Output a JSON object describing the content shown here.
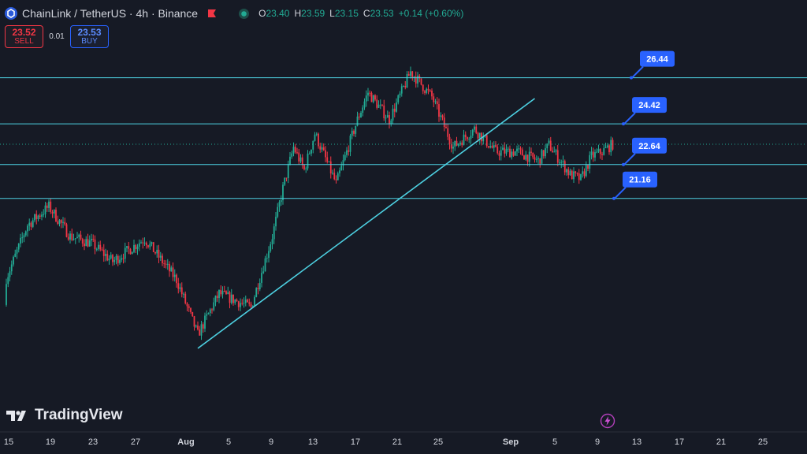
{
  "header": {
    "title": "ChainLink / TetherUS · 4h · Binance",
    "ohlc": [
      {
        "label": "O",
        "value": "23.40"
      },
      {
        "label": "H",
        "value": "23.59"
      },
      {
        "label": "L",
        "value": "23.15"
      },
      {
        "label": "C",
        "value": "23.53"
      }
    ],
    "change": "+0.14 (+0.60%)"
  },
  "trade": {
    "sell_price": "23.52",
    "sell_label": "SELL",
    "spread": "0.01",
    "buy_price": "23.53",
    "buy_label": "BUY"
  },
  "brand": {
    "name": "TradingView"
  },
  "colors": {
    "up": "#22ab94",
    "down": "#f23645",
    "line": "#4dd0e1",
    "label_bg": "#2962ff",
    "background": "#161a25"
  },
  "icons": {
    "symbol": "chainlink-logo-icon",
    "flag": "flag-icon",
    "status": "market-status-icon",
    "bolt": "lightning-icon"
  },
  "chart_data": {
    "type": "candlestick",
    "x_tick_labels": [
      "15",
      "19",
      "23",
      "27",
      "Aug",
      "5",
      "9",
      "13",
      "17",
      "21",
      "25",
      "Sep",
      "5",
      "9",
      "13",
      "17",
      "21",
      "25"
    ],
    "levels": [
      {
        "label": "26.44",
        "value": 26.44
      },
      {
        "label": "24.42",
        "value": 24.42
      },
      {
        "label": "22.64",
        "value": 22.64
      },
      {
        "label": "21.16",
        "value": 21.16
      }
    ],
    "last_price": 23.53,
    "trendline": {
      "from": {
        "x": "Aug 2",
        "y": 14.6
      },
      "to": {
        "x": "Sep 2",
        "y": 24.6
      }
    },
    "path_keypoints": [
      {
        "x": "Jul 14",
        "y": 16.5
      },
      {
        "x": "Jul 17",
        "y": 20.0
      },
      {
        "x": "Jul 19",
        "y": 20.8
      },
      {
        "x": "Jul 21",
        "y": 19.5
      },
      {
        "x": "Jul 23",
        "y": 19.2
      },
      {
        "x": "Jul 25",
        "y": 18.4
      },
      {
        "x": "Jul 28",
        "y": 19.4
      },
      {
        "x": "Jul 31",
        "y": 17.6
      },
      {
        "x": "Aug 2",
        "y": 15.2
      },
      {
        "x": "Aug 4",
        "y": 17.0
      },
      {
        "x": "Aug 7",
        "y": 16.4
      },
      {
        "x": "Aug 9",
        "y": 19.5
      },
      {
        "x": "Aug 10",
        "y": 21.6
      },
      {
        "x": "Aug 11",
        "y": 23.4
      },
      {
        "x": "Aug 12",
        "y": 22.4
      },
      {
        "x": "Aug 13",
        "y": 24.0
      },
      {
        "x": "Aug 15",
        "y": 21.8
      },
      {
        "x": "Aug 17",
        "y": 24.6
      },
      {
        "x": "Aug 18",
        "y": 25.8
      },
      {
        "x": "Aug 20",
        "y": 24.6
      },
      {
        "x": "Aug 22",
        "y": 26.7
      },
      {
        "x": "Aug 24",
        "y": 25.6
      },
      {
        "x": "Aug 26",
        "y": 23.4
      },
      {
        "x": "Aug 28",
        "y": 24.2
      },
      {
        "x": "Aug 30",
        "y": 23.2
      },
      {
        "x": "Sep 1",
        "y": 23.2
      },
      {
        "x": "Sep 3",
        "y": 22.8
      },
      {
        "x": "Sep 4",
        "y": 23.5
      },
      {
        "x": "Sep 6",
        "y": 22.2
      },
      {
        "x": "Sep 7",
        "y": 22.0
      },
      {
        "x": "Sep 8",
        "y": 23.0
      },
      {
        "x": "Sep 9",
        "y": 23.2
      },
      {
        "x": "Sep 10",
        "y": 23.53
      }
    ]
  }
}
